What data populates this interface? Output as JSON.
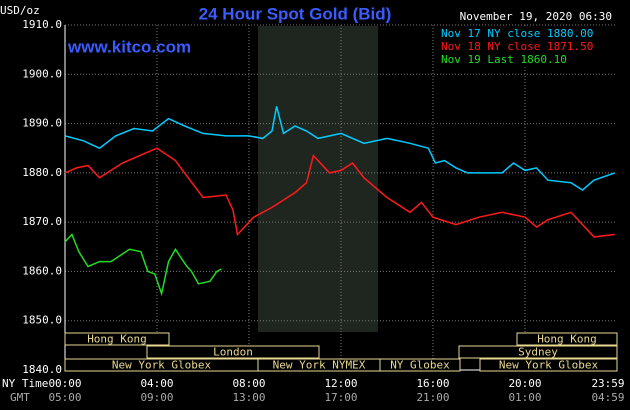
{
  "chart_data": {
    "type": "line",
    "title": "24 Hour Spot Gold (Bid)",
    "subtitle": "November 19, 2020 06:30",
    "annotation": "www.kitco.com",
    "y_label": "USD/oz",
    "x_label": "NY Time",
    "x2_label": "GMT",
    "xlim": [
      0,
      24
    ],
    "xticks": [
      {
        "value": 0,
        "label": "00:00"
      },
      {
        "value": 4,
        "label": "04:00"
      },
      {
        "value": 8,
        "label": "08:00"
      },
      {
        "value": 12,
        "label": "12:00"
      },
      {
        "value": 16,
        "label": "16:00"
      },
      {
        "value": 20,
        "label": "20:00"
      },
      {
        "value": 23.983,
        "label": "23:59"
      }
    ],
    "gmt_ticks": [
      "05:00",
      "09:00",
      "13:00",
      "17:00",
      "21:00",
      "01:00",
      "04:59"
    ],
    "ylim": [
      1840,
      1910
    ],
    "yticks": [
      {
        "value": 1840,
        "label": "1840.0"
      },
      {
        "value": 1850,
        "label": "1850.0"
      },
      {
        "value": 1860,
        "label": "1860.0"
      },
      {
        "value": 1870,
        "label": "1870.0"
      },
      {
        "value": 1880,
        "label": "1880.0"
      },
      {
        "value": 1890,
        "label": "1890.0"
      },
      {
        "value": 1900,
        "label": "1900.0"
      },
      {
        "value": 1910,
        "label": "1910.0"
      }
    ],
    "grid": true,
    "legend": "upper right",
    "sessions": [
      "Hong Kong",
      "Hong Kong",
      "London",
      "Sydney",
      "New York Globex",
      "New York NYMEX",
      "NY Globex",
      "New York Globex"
    ],
    "series": [
      {
        "name": "Nov 17 NY close 1880.00",
        "color": "#00ccff",
        "x": [
          0,
          0.8,
          1.5,
          2.2,
          3,
          3.8,
          4.5,
          5.2,
          6,
          7,
          8,
          8.6,
          9,
          9.2,
          9.5,
          10,
          10.5,
          11,
          12,
          13,
          14,
          15,
          15.8,
          16.1,
          16.5,
          17,
          17.5,
          18.5,
          19,
          19.5,
          20,
          20.5,
          21,
          22,
          22.5,
          23,
          23.9
        ],
        "values": [
          1887.5,
          1886.5,
          1885,
          1887.5,
          1889,
          1888.5,
          1891,
          1889.5,
          1888,
          1887.5,
          1887.5,
          1887,
          1888.5,
          1893.5,
          1888,
          1889.5,
          1888.5,
          1887,
          1888,
          1886,
          1887,
          1886,
          1885,
          1882,
          1882.5,
          1881,
          1880,
          1880,
          1880,
          1882,
          1880.5,
          1881,
          1878.5,
          1878,
          1876.5,
          1878.5,
          1880
        ]
      },
      {
        "name": "Nov 18 NY close 1871.50",
        "color": "#ff1a1a",
        "x": [
          0,
          0.5,
          1,
          1.5,
          2.5,
          3.5,
          4,
          4.8,
          5.2,
          6,
          7,
          7.3,
          7.5,
          8.2,
          9,
          10,
          10.5,
          10.8,
          11.5,
          12,
          12.5,
          13,
          14,
          15,
          15.5,
          16,
          17,
          18,
          19,
          20,
          20.5,
          21,
          22,
          22.5,
          23,
          23.9
        ],
        "values": [
          1880,
          1881,
          1881.5,
          1879,
          1882,
          1884,
          1885,
          1882.5,
          1880,
          1875,
          1875.5,
          1872.5,
          1867.5,
          1871,
          1873,
          1876,
          1878,
          1883.5,
          1880,
          1880.5,
          1882,
          1879,
          1875,
          1872,
          1874,
          1871,
          1869.5,
          1871,
          1872,
          1871,
          1869,
          1870.5,
          1872,
          1869.5,
          1867,
          1867.5
        ]
      },
      {
        "name": "Nov 19 Last 1860.10",
        "color": "#22dd22",
        "x": [
          0,
          0.3,
          0.6,
          0.8,
          1,
          1.5,
          2,
          2.8,
          3.3,
          3.6,
          3.9,
          4.2,
          4.5,
          4.8,
          5.3,
          5.5,
          5.8,
          6.3,
          6.6,
          6.8
        ],
        "values": [
          1866,
          1867.5,
          1864,
          1862.5,
          1861,
          1862,
          1862,
          1864.5,
          1864,
          1860,
          1859.5,
          1855.5,
          1862,
          1864.5,
          1861,
          1860,
          1857.5,
          1858,
          1860,
          1860.5
        ]
      }
    ]
  }
}
